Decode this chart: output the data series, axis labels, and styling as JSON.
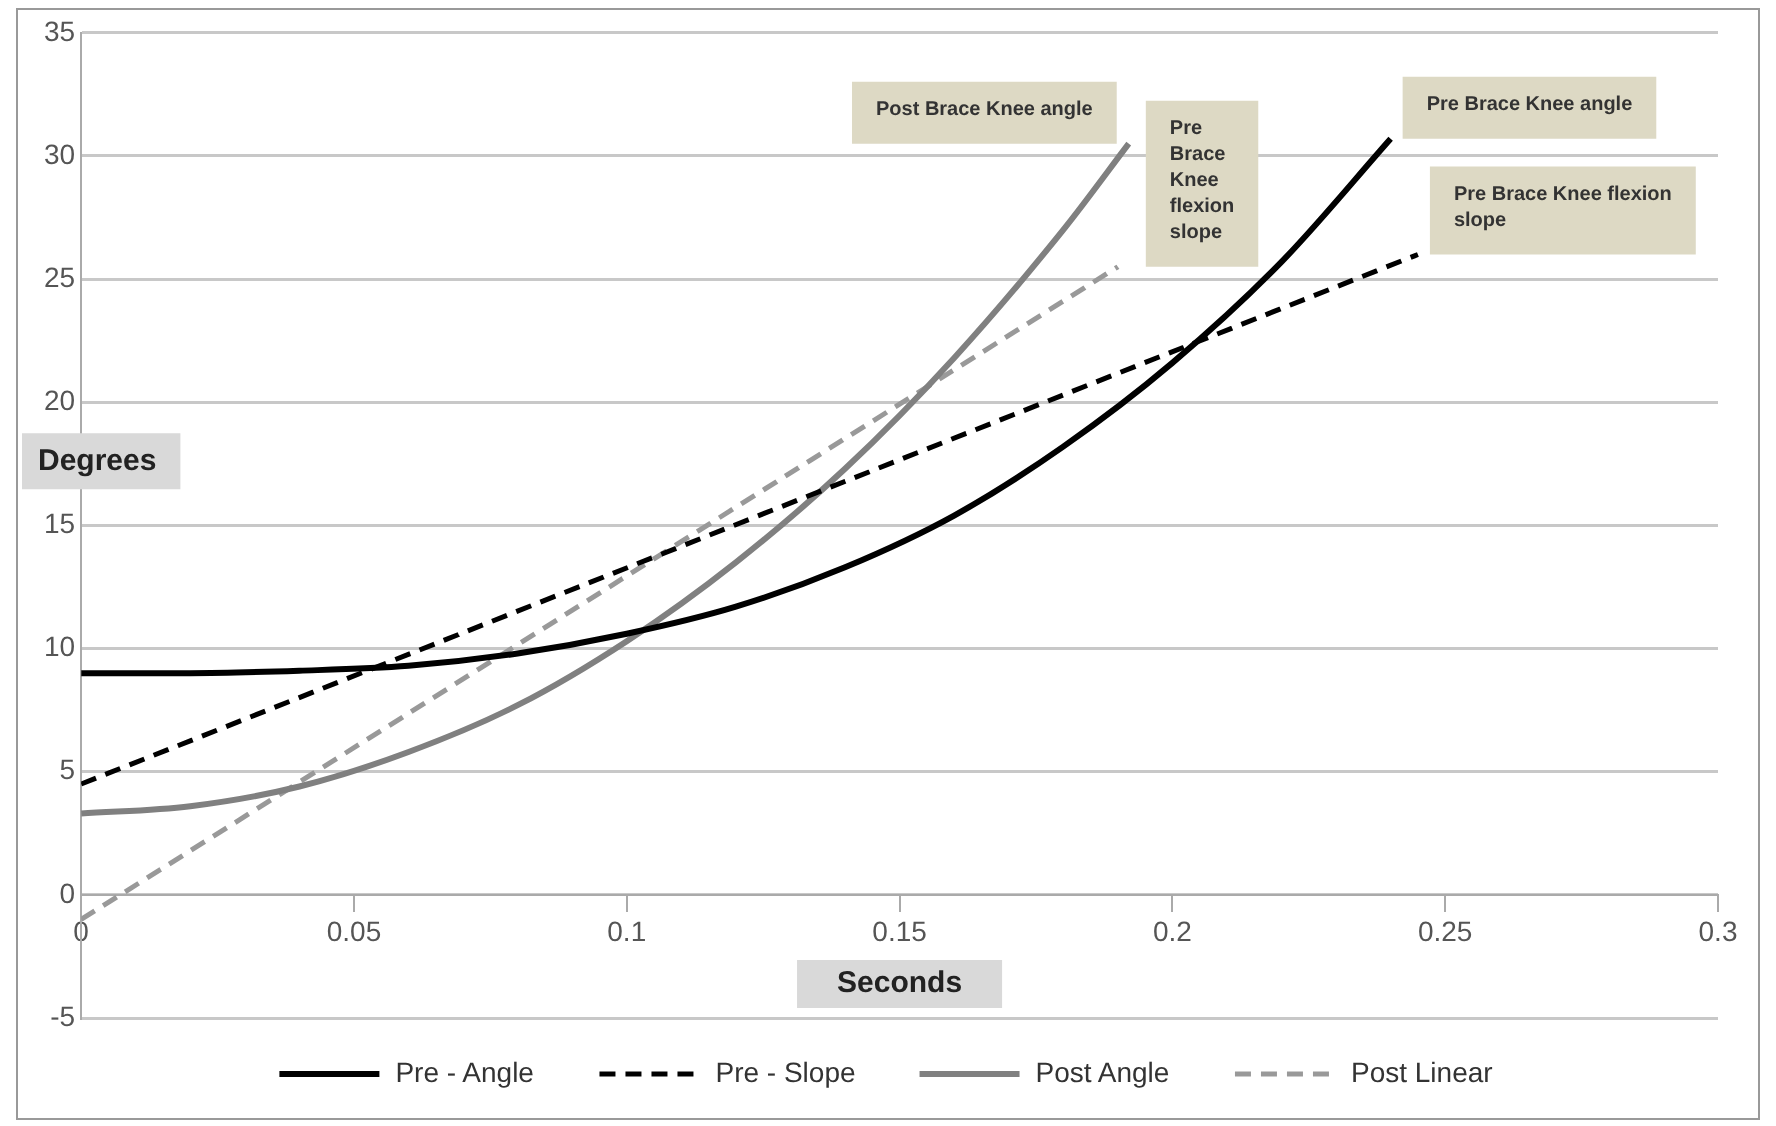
{
  "chart_data": {
    "type": "line",
    "xlabel": "Seconds",
    "ylabel": "Degrees",
    "xlim": [
      0,
      0.3
    ],
    "xticks": [
      0,
      0.05,
      0.1,
      0.15,
      0.2,
      0.25,
      0.3
    ],
    "ylim": [
      -5,
      35
    ],
    "yticks": [
      -5,
      0,
      5,
      10,
      15,
      20,
      25,
      30,
      35
    ],
    "grid": "y",
    "legend": "bottom",
    "marker": "none",
    "series": [
      {
        "name": "Pre - Angle",
        "color": "#000000",
        "line_style": "solid",
        "x": [
          0,
          0.02,
          0.04,
          0.06,
          0.08,
          0.1,
          0.12,
          0.14,
          0.16,
          0.18,
          0.2,
          0.22,
          0.24
        ],
        "values": [
          9,
          9,
          9.1,
          9.3,
          9.8,
          10.6,
          11.7,
          13.3,
          15.4,
          18.2,
          21.6,
          25.7,
          30.7
        ]
      },
      {
        "name": "Pre - Slope",
        "color": "#000000",
        "line_style": "dashed",
        "x": [
          0,
          0.245
        ],
        "values": [
          4.5,
          26
        ]
      },
      {
        "name": "Post Angle",
        "color": "#808080",
        "line_style": "solid",
        "x": [
          0,
          0.02,
          0.04,
          0.06,
          0.08,
          0.1,
          0.12,
          0.14,
          0.16,
          0.18,
          0.192
        ],
        "values": [
          3.3,
          3.6,
          4.4,
          5.8,
          7.7,
          10.3,
          13.5,
          17.3,
          21.8,
          27,
          30.5
        ]
      },
      {
        "name": "Post Linear",
        "color": "#999999",
        "line_style": "dashed",
        "x": [
          0,
          0.19
        ],
        "values": [
          -1,
          25.5
        ]
      }
    ],
    "annotations": [
      {
        "text": "Pre Brace Knee angle",
        "x": 0.24,
        "y": 30.7
      },
      {
        "text": "Pre Brace Knee flexion slope",
        "x": 0.245,
        "y": 26
      },
      {
        "text": "Pre Brace Knee flexion slope",
        "x": 0.19,
        "y": 25.5
      },
      {
        "text": "Post Brace Knee angle",
        "x": 0.192,
        "y": 30.5
      }
    ]
  }
}
